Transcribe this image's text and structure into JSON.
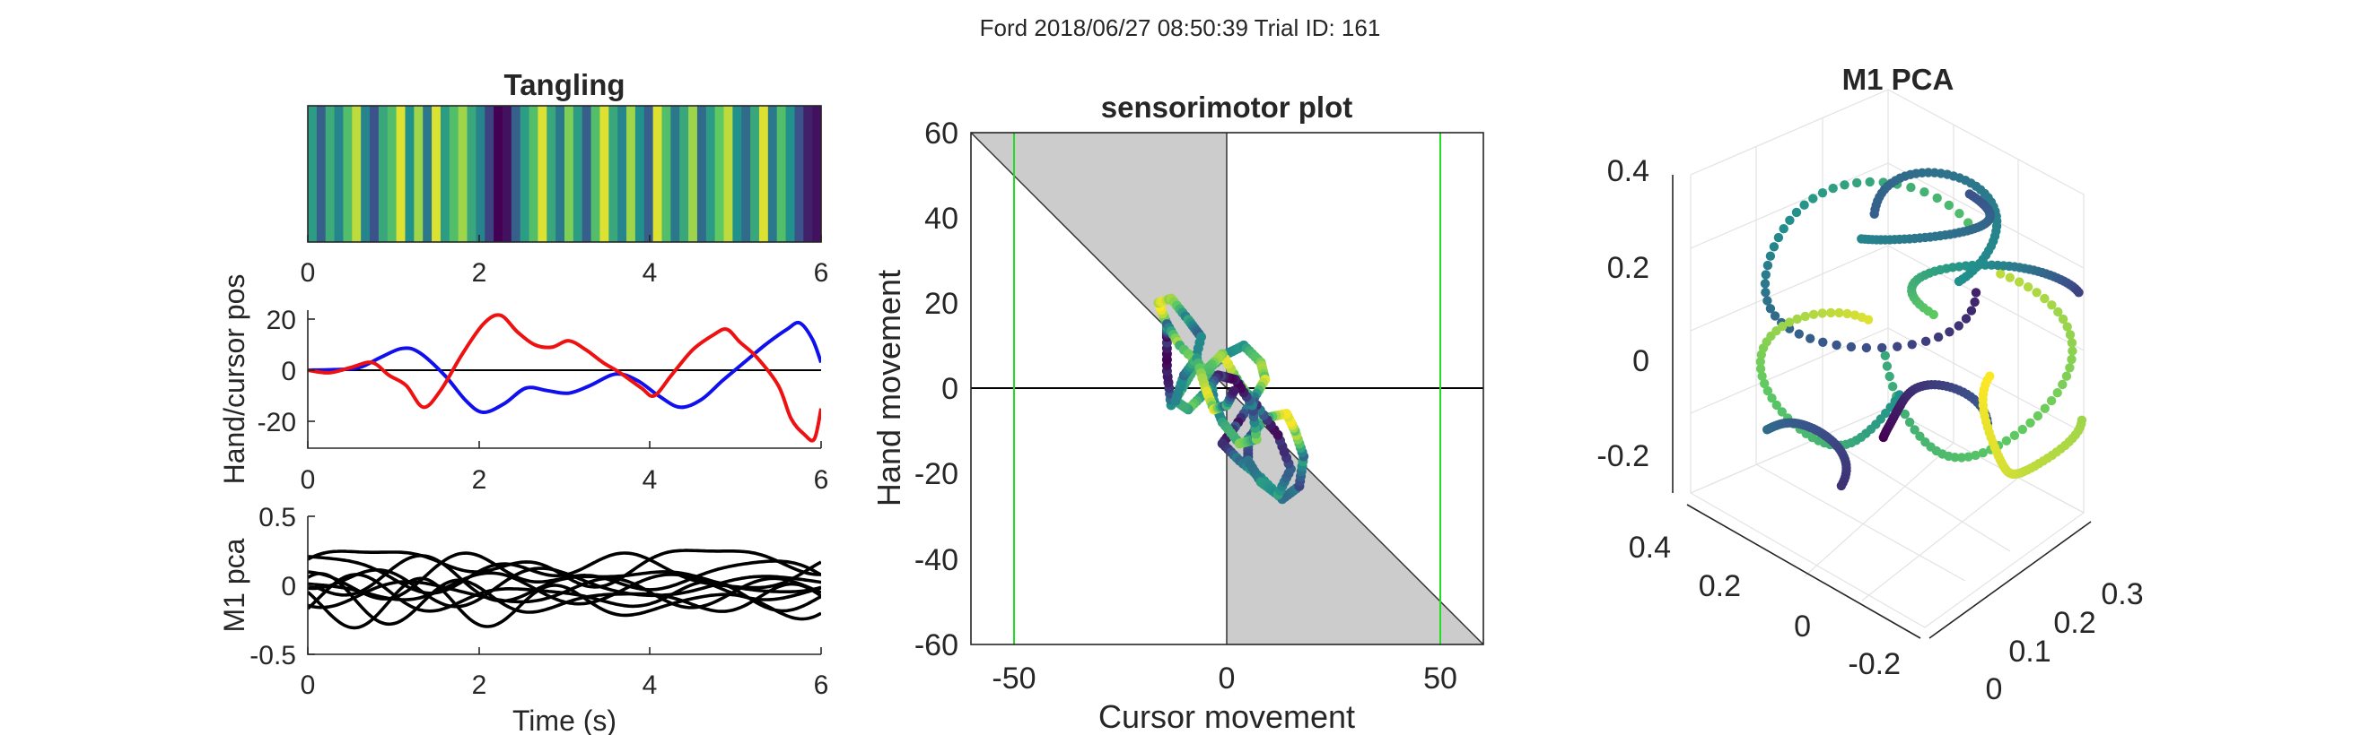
{
  "figure": {
    "suptitle": "Ford 2018/06/27 08:50:39 Trial ID: 161"
  },
  "colors": {
    "hand": "#1010ee",
    "cursor": "#ee1111",
    "region_fill": "#cccccc",
    "limit_lines": "#22dd22",
    "viridis": [
      "#440154",
      "#3b528b",
      "#21918c",
      "#5ec962",
      "#fde725"
    ]
  },
  "chart_data": [
    {
      "id": "tangling",
      "type": "heatmap",
      "title": "Tangling",
      "xlim": [
        0,
        6
      ],
      "xticks": [
        "0",
        "2",
        "4",
        "6"
      ],
      "colormap": "viridis",
      "values": [
        0.55,
        0.3,
        0.62,
        0.45,
        0.7,
        0.9,
        0.45,
        0.25,
        0.6,
        0.7,
        0.95,
        0.5,
        0.85,
        0.4,
        0.95,
        0.55,
        0.7,
        0.85,
        0.6,
        0.45,
        0.2,
        0.0,
        0.05,
        0.3,
        0.55,
        0.7,
        0.95,
        0.6,
        0.4,
        0.8,
        0.55,
        0.3,
        0.7,
        0.95,
        0.6,
        0.45,
        0.85,
        0.5,
        0.3,
        0.95,
        0.7,
        0.4,
        0.6,
        0.85,
        0.35,
        0.55,
        0.75,
        0.9,
        0.5,
        0.35,
        0.6,
        0.95,
        0.4,
        0.7,
        0.5,
        0.25,
        0.1,
        0.05
      ]
    },
    {
      "id": "hand-cursor",
      "type": "line",
      "ylabel": "Hand/cursor pos",
      "xlim": [
        0,
        6
      ],
      "ylim": [
        -27,
        27
      ],
      "xticks": [
        "0",
        "2",
        "4",
        "6"
      ],
      "yticks": [
        "-20",
        "0",
        "20"
      ],
      "series": [
        {
          "color": "hand",
          "points": [
            [
              0,
              0
            ],
            [
              0.3,
              0.2
            ],
            [
              0.6,
              1
            ],
            [
              0.85,
              5
            ],
            [
              1.1,
              8.5
            ],
            [
              1.3,
              7
            ],
            [
              1.6,
              -2
            ],
            [
              1.85,
              -12
            ],
            [
              2.05,
              -16.5
            ],
            [
              2.3,
              -13
            ],
            [
              2.55,
              -7
            ],
            [
              2.8,
              -8
            ],
            [
              3.05,
              -9
            ],
            [
              3.3,
              -6
            ],
            [
              3.6,
              -1.5
            ],
            [
              3.85,
              -4
            ],
            [
              4.1,
              -10
            ],
            [
              4.35,
              -14.5
            ],
            [
              4.6,
              -11.5
            ],
            [
              4.85,
              -4
            ],
            [
              5.1,
              3
            ],
            [
              5.35,
              10
            ],
            [
              5.6,
              16
            ],
            [
              5.75,
              18.5
            ],
            [
              5.9,
              12
            ],
            [
              6,
              3
            ]
          ]
        },
        {
          "color": "cursor",
          "points": [
            [
              0,
              0
            ],
            [
              0.25,
              -1
            ],
            [
              0.5,
              1
            ],
            [
              0.75,
              3
            ],
            [
              0.95,
              -2
            ],
            [
              1.15,
              -6
            ],
            [
              1.35,
              -14.5
            ],
            [
              1.55,
              -8
            ],
            [
              1.8,
              6
            ],
            [
              2.05,
              18
            ],
            [
              2.25,
              21.5
            ],
            [
              2.45,
              15
            ],
            [
              2.65,
              10
            ],
            [
              2.85,
              9
            ],
            [
              3.05,
              11.5
            ],
            [
              3.25,
              8
            ],
            [
              3.45,
              3
            ],
            [
              3.65,
              -1
            ],
            [
              3.9,
              -7
            ],
            [
              4.05,
              -10
            ],
            [
              4.25,
              -2
            ],
            [
              4.5,
              8
            ],
            [
              4.75,
              14
            ],
            [
              4.9,
              16
            ],
            [
              5.05,
              11
            ],
            [
              5.25,
              5
            ],
            [
              5.5,
              -6
            ],
            [
              5.65,
              -19
            ],
            [
              5.8,
              -25
            ],
            [
              5.92,
              -27
            ],
            [
              6,
              -15
            ]
          ]
        }
      ]
    },
    {
      "id": "m1-pca-traces",
      "type": "line",
      "xlabel": "Time (s)",
      "ylabel": "M1 pca",
      "xlim": [
        0,
        6
      ],
      "ylim": [
        -0.5,
        0.5
      ],
      "xticks": [
        "0",
        "2",
        "4",
        "6"
      ],
      "yticks": [
        "-0.5",
        "0",
        "0.5"
      ],
      "series_count": 10
    },
    {
      "id": "sensorimotor",
      "type": "scatter",
      "title": "sensorimotor plot",
      "xlabel": "Cursor movement",
      "ylabel": "Hand movement",
      "xlim": [
        -60,
        60
      ],
      "ylim": [
        -60,
        60
      ],
      "xticks": [
        "-50",
        "0",
        "50"
      ],
      "yticks": [
        "-60",
        "-40",
        "-20",
        "0",
        "20",
        "40",
        "60"
      ],
      "limit_lines_x": [
        -50,
        50
      ],
      "trajectory": [
        [
          -14,
          15
        ],
        [
          -16,
          20
        ],
        [
          -13,
          21
        ],
        [
          -9,
          16
        ],
        [
          -6,
          12
        ],
        [
          -8,
          4
        ],
        [
          -11,
          -1
        ],
        [
          -13,
          -4
        ],
        [
          -14,
          4
        ],
        [
          -14,
          12
        ],
        [
          -14,
          15
        ],
        [
          -11,
          10
        ],
        [
          -5,
          4
        ],
        [
          0,
          8
        ],
        [
          4,
          10
        ],
        [
          8,
          6
        ],
        [
          9,
          2
        ],
        [
          6,
          -3
        ],
        [
          2,
          -9
        ],
        [
          -1,
          -13
        ],
        [
          3,
          -17
        ],
        [
          8,
          -21
        ],
        [
          13,
          -26
        ],
        [
          17,
          -23
        ],
        [
          18,
          -16
        ],
        [
          16,
          -10
        ],
        [
          14,
          -6
        ],
        [
          9,
          -7
        ],
        [
          5,
          -12
        ],
        [
          5,
          -17
        ],
        [
          8,
          -22
        ],
        [
          12,
          -25
        ],
        [
          15,
          -19
        ],
        [
          12,
          -11
        ],
        [
          7,
          -4
        ],
        [
          3,
          1
        ],
        [
          -1,
          8
        ],
        [
          -4,
          5
        ],
        [
          -3,
          -3
        ],
        [
          -1,
          -8
        ],
        [
          3,
          -13
        ],
        [
          7,
          -12
        ],
        [
          6,
          -4
        ],
        [
          2,
          2
        ],
        [
          -2,
          3
        ],
        [
          -5,
          -1
        ],
        [
          -9,
          -5
        ],
        [
          -12,
          -3
        ],
        [
          -10,
          3
        ],
        [
          -7,
          7
        ],
        [
          -5,
          0
        ],
        [
          -3,
          -5
        ],
        [
          0,
          -4
        ],
        [
          2,
          0
        ]
      ]
    },
    {
      "id": "m1-pca-3d",
      "type": "scatter",
      "title": "M1 PCA",
      "zticks": [
        "-0.2",
        "0",
        "0.2",
        "0.4"
      ],
      "yticks": [
        "0.4",
        "0.2",
        "0",
        "-0.2"
      ],
      "xticks": [
        "0",
        "0.1",
        "0.2",
        "0.3"
      ],
      "zlim": [
        -0.3,
        0.45
      ]
    }
  ]
}
